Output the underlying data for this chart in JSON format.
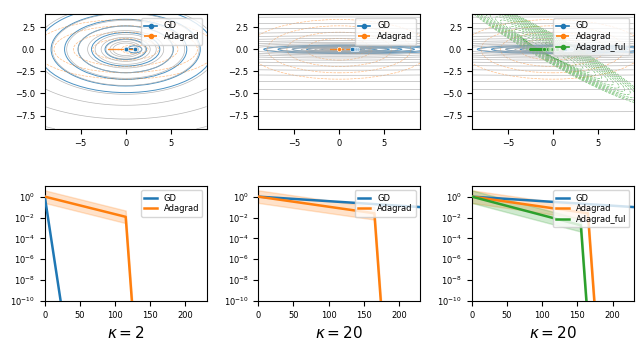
{
  "fig_width": 6.4,
  "fig_height": 3.5,
  "dpi": 100,
  "colors": {
    "GD": "#1f77b4",
    "Adagrad": "#ff7f0e",
    "Adagrad_ful": "#2ca02c",
    "contour": "#b0b0b0"
  },
  "contour_xlim": [
    -9,
    9
  ],
  "contour_ylim": [
    -9,
    4
  ],
  "tick_fontsize": 6,
  "legend_fontsize": 6,
  "kappa_label_fontsize": 11
}
